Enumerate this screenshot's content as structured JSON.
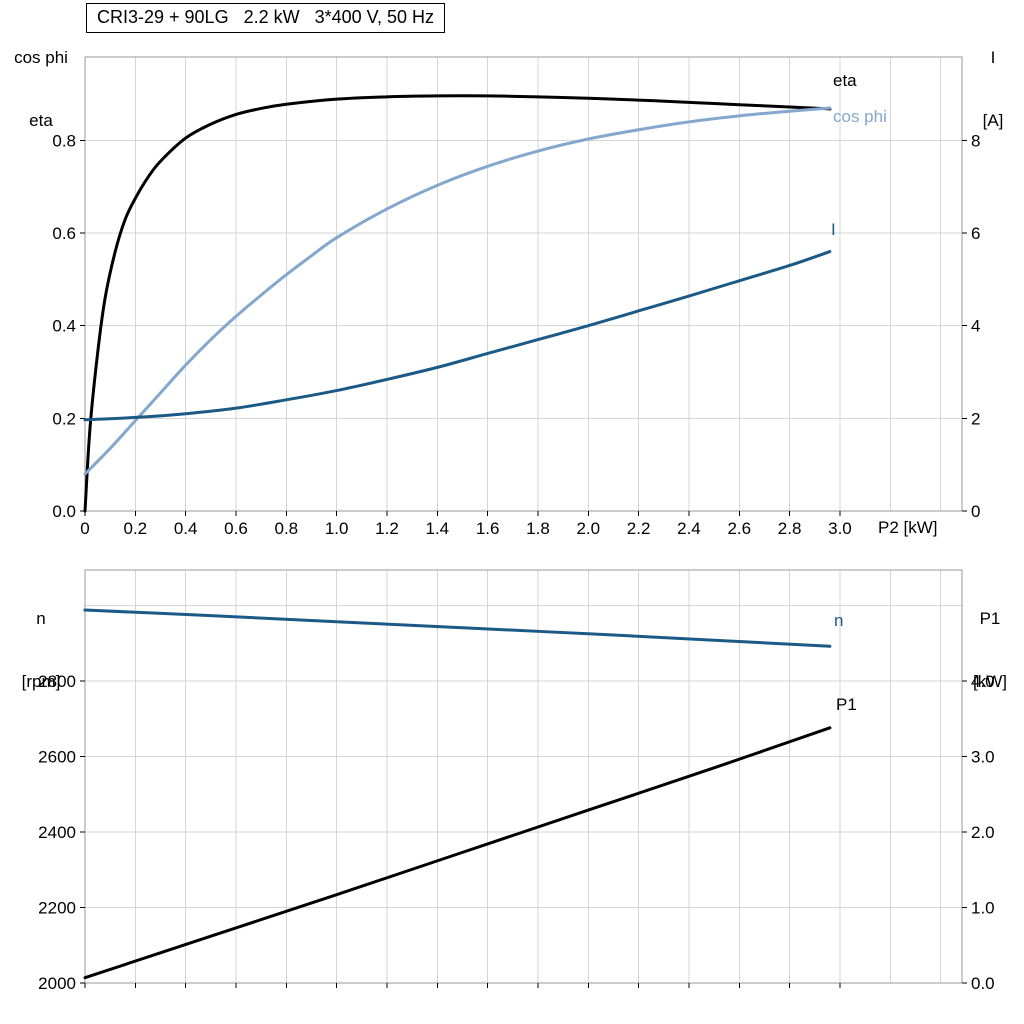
{
  "title_box": {
    "text": "CRI3-29 + 90LG   2.2 kW   3*400 V, 50 Hz"
  },
  "colors": {
    "eta_p1": "#000000",
    "cos_phi": "#84a7cd",
    "i_n": "#1b5987",
    "grid": "#d6d6d6",
    "frame": "#999999",
    "tick": "#000000",
    "text": "#000000",
    "background": "#ffffff"
  },
  "chart_data": [
    {
      "type": "line",
      "title": "CRI3-29 + 90LG   2.2 kW   3*400 V, 50 Hz",
      "x_axis": {
        "label": "P2 [kW]",
        "range": [
          0,
          3.485
        ],
        "grid_step": 0.2,
        "show_tick_labels": true,
        "tick_values": [
          0,
          0.2,
          0.4,
          0.6,
          0.8,
          1.0,
          1.2,
          1.4,
          1.6,
          1.8,
          2.0,
          2.2,
          2.4,
          2.6,
          2.8,
          3.0
        ],
        "tick_labels": [
          "0",
          "0.2",
          "0.4",
          "0.6",
          "0.8",
          "1.0",
          "1.2",
          "1.4",
          "1.6",
          "1.8",
          "2.0",
          "2.2",
          "2.4",
          "2.6",
          "2.8",
          "3.0"
        ]
      },
      "left_axis": {
        "label_lines": [
          "cos phi",
          "eta"
        ],
        "range": [
          0,
          0.98
        ],
        "grid_step": 0.2,
        "tick_values": [
          0.0,
          0.2,
          0.4,
          0.6,
          0.8
        ],
        "tick_labels": [
          "0.0",
          "0.2",
          "0.4",
          "0.6",
          "0.8"
        ]
      },
      "right_axis": {
        "label_lines": [
          "I",
          "[A]"
        ],
        "range": [
          0,
          9.8
        ],
        "tick_values": [
          0,
          2,
          4,
          6,
          8
        ],
        "tick_labels": [
          "0",
          "2",
          "4",
          "6",
          "8"
        ]
      },
      "legend_position": "right-of-curves",
      "grid": true,
      "series": [
        {
          "name": "eta",
          "axis": "left",
          "color_key": "eta_p1",
          "x": [
            0,
            0.02,
            0.05,
            0.08,
            0.12,
            0.16,
            0.2,
            0.25,
            0.3,
            0.4,
            0.5,
            0.6,
            0.7,
            0.8,
            1.0,
            1.2,
            1.4,
            1.6,
            1.8,
            2.0,
            2.2,
            2.4,
            2.6,
            2.8,
            2.96
          ],
          "y": [
            0,
            0.18,
            0.34,
            0.46,
            0.56,
            0.63,
            0.675,
            0.72,
            0.755,
            0.805,
            0.835,
            0.856,
            0.869,
            0.878,
            0.889,
            0.894,
            0.896,
            0.896,
            0.894,
            0.891,
            0.887,
            0.882,
            0.877,
            0.872,
            0.868
          ]
        },
        {
          "name": "cos phi",
          "axis": "left",
          "color_key": "cos_phi",
          "x": [
            0,
            0.1,
            0.2,
            0.3,
            0.4,
            0.5,
            0.6,
            0.7,
            0.8,
            0.9,
            1.0,
            1.2,
            1.4,
            1.6,
            1.8,
            2.0,
            2.2,
            2.4,
            2.6,
            2.8,
            2.96
          ],
          "y": [
            0.08,
            0.135,
            0.195,
            0.255,
            0.315,
            0.37,
            0.42,
            0.466,
            0.51,
            0.551,
            0.59,
            0.652,
            0.703,
            0.744,
            0.777,
            0.803,
            0.823,
            0.84,
            0.853,
            0.863,
            0.87
          ]
        },
        {
          "name": "I",
          "axis": "right",
          "color_key": "i_n",
          "x": [
            0,
            0.2,
            0.4,
            0.6,
            0.8,
            1.0,
            1.2,
            1.4,
            1.6,
            1.8,
            2.0,
            2.2,
            2.4,
            2.6,
            2.8,
            2.96
          ],
          "y": [
            1.97,
            2.02,
            2.1,
            2.22,
            2.4,
            2.6,
            2.84,
            3.1,
            3.4,
            3.7,
            4.0,
            4.32,
            4.64,
            4.97,
            5.3,
            5.6
          ]
        }
      ]
    },
    {
      "type": "line",
      "x_axis": {
        "range": [
          0,
          3.485
        ],
        "grid_step": 0.2,
        "show_tick_labels": false,
        "tick_values": [
          0,
          0.2,
          0.4,
          0.6,
          0.8,
          1.0,
          1.2,
          1.4,
          1.6,
          1.8,
          2.0,
          2.2,
          2.4,
          2.6,
          2.8,
          3.0
        ],
        "tick_labels": [
          "0",
          "0.2",
          "0.4",
          "0.6",
          "0.8",
          "1.0",
          "1.2",
          "1.4",
          "1.6",
          "1.8",
          "2.0",
          "2.2",
          "2.4",
          "2.6",
          "2.8",
          "3.0"
        ]
      },
      "left_axis": {
        "label_lines": [
          "n",
          "[rpm]"
        ],
        "range": [
          2000,
          3094
        ],
        "grid_step": 200,
        "tick_values": [
          2000,
          2200,
          2400,
          2600,
          2800
        ],
        "tick_labels": [
          "2000",
          "2200",
          "2400",
          "2600",
          "2800"
        ]
      },
      "right_axis": {
        "label_lines": [
          "P1",
          "[kW]"
        ],
        "range": [
          0,
          5.47
        ],
        "tick_values": [
          0,
          1,
          2,
          3,
          4
        ],
        "tick_labels": [
          "0.0",
          "1.0",
          "2.0",
          "3.0",
          "4.0"
        ]
      },
      "grid": true,
      "series": [
        {
          "name": "n",
          "axis": "left",
          "color_key": "i_n",
          "x": [
            0,
            0.5,
            1.0,
            1.5,
            2.0,
            2.5,
            2.96
          ],
          "y": [
            2988,
            2973,
            2957,
            2941,
            2925,
            2908,
            2892
          ]
        },
        {
          "name": "P1",
          "axis": "right",
          "color_key": "eta_p1",
          "x": [
            0,
            0.5,
            1.0,
            1.5,
            2.0,
            2.5,
            2.96
          ],
          "y": [
            0.07,
            0.62,
            1.17,
            1.73,
            2.29,
            2.85,
            3.38
          ]
        }
      ]
    }
  ]
}
